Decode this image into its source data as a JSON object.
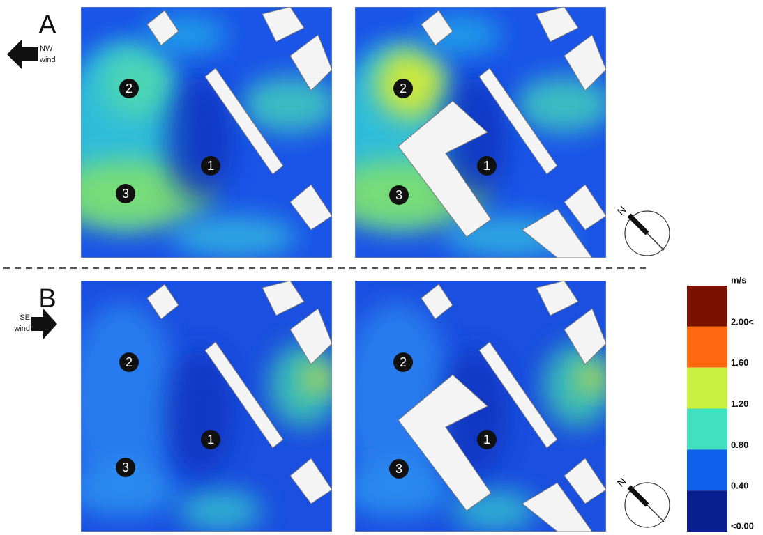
{
  "sections": [
    {
      "label": "A",
      "wind_direction": "NW",
      "wind_word": "wind",
      "compass": "N",
      "maps": [
        {
          "markers": [
            "2",
            "1",
            "3"
          ]
        },
        {
          "markers": [
            "2",
            "1",
            "3"
          ]
        }
      ]
    },
    {
      "label": "B",
      "wind_direction": "SE",
      "wind_word": "wind",
      "compass": "N",
      "maps": [
        {
          "markers": [
            "2",
            "1",
            "3"
          ]
        },
        {
          "markers": [
            "2",
            "1",
            "3"
          ]
        }
      ]
    }
  ],
  "legend": {
    "unit": "m/s",
    "bands": [
      {
        "color": "#7a1000",
        "label": "2.00<"
      },
      {
        "color": "#ff6a10",
        "label": "1.60"
      },
      {
        "color": "#c8f040",
        "label": "1.20"
      },
      {
        "color": "#40e0c0",
        "label": "0.80"
      },
      {
        "color": "#1060f0",
        "label": "0.40"
      },
      {
        "color": "#0a1f90",
        "label": "<0.00"
      }
    ]
  }
}
